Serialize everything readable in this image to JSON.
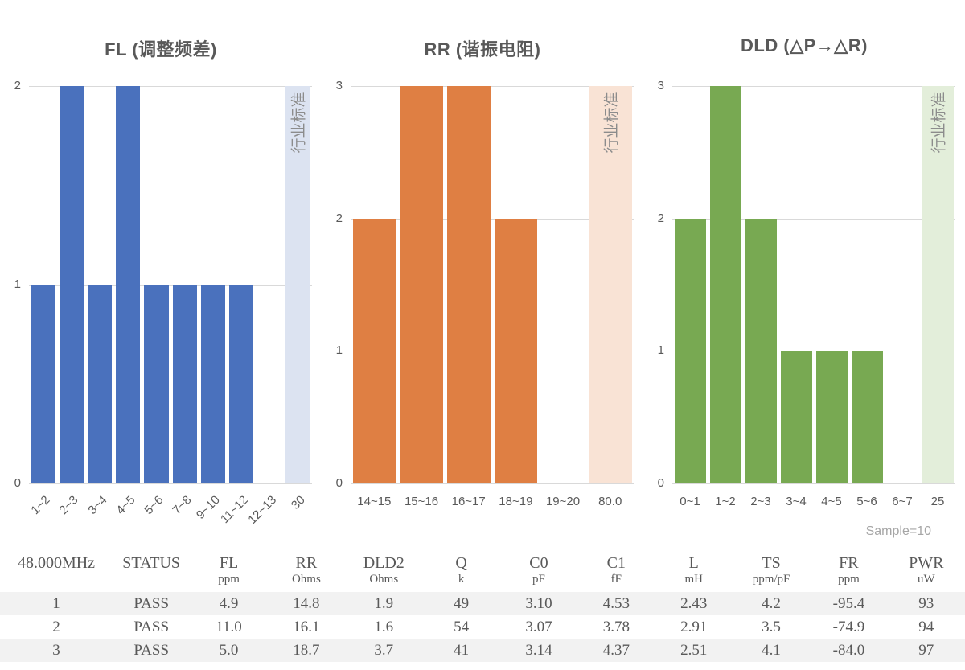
{
  "standard_band_label": "行业标准",
  "chart_data": [
    {
      "type": "bar",
      "title": "FL (调整频差)",
      "categories": [
        "1~2",
        "2~3",
        "3~4",
        "4~5",
        "5~6",
        "7~8",
        "9~10",
        "11~12",
        "12~13",
        "30"
      ],
      "values": [
        1,
        2,
        1,
        2,
        1,
        1,
        1,
        1,
        0,
        2
      ],
      "ylim": [
        0,
        2
      ],
      "yticks": [
        0,
        1,
        2
      ],
      "grid": true,
      "bar_color": "#4a71bd",
      "standard": {
        "index": 9,
        "label": "行业标准",
        "color": "#dce3f1"
      },
      "rotated_x_labels": true
    },
    {
      "type": "bar",
      "title": "RR (谐振电阻)",
      "categories": [
        "14~15",
        "15~16",
        "16~17",
        "18~19",
        "19~20",
        "80.0"
      ],
      "values": [
        2,
        3,
        3,
        2,
        0,
        3
      ],
      "ylim": [
        0,
        3
      ],
      "yticks": [
        0,
        1,
        2,
        3
      ],
      "grid": true,
      "bar_color": "#df7f43",
      "standard": {
        "index": 5,
        "label": "行业标准",
        "color": "#f9e3d5"
      },
      "rotated_x_labels": false
    },
    {
      "type": "bar",
      "title": "DLD (△P→△R)",
      "categories": [
        "0~1",
        "1~2",
        "2~3",
        "3~4",
        "4~5",
        "5~6",
        "6~7",
        "25"
      ],
      "values": [
        2,
        3,
        2,
        1,
        1,
        1,
        0,
        3
      ],
      "ylim": [
        0,
        3
      ],
      "yticks": [
        0,
        1,
        2,
        3
      ],
      "grid": true,
      "bar_color": "#78a952",
      "standard": {
        "index": 7,
        "label": "行业标准",
        "color": "#e3eeda"
      },
      "rotated_x_labels": false
    }
  ],
  "table": {
    "sample_note": "Sample=10",
    "columns": [
      {
        "label": "48.000MHz",
        "unit": ""
      },
      {
        "label": "STATUS",
        "unit": ""
      },
      {
        "label": "FL",
        "unit": "ppm"
      },
      {
        "label": "RR",
        "unit": "Ohms"
      },
      {
        "label": "DLD2",
        "unit": "Ohms"
      },
      {
        "label": "Q",
        "unit": "k"
      },
      {
        "label": "C0",
        "unit": "pF"
      },
      {
        "label": "C1",
        "unit": "fF"
      },
      {
        "label": "L",
        "unit": "mH"
      },
      {
        "label": "TS",
        "unit": "ppm/pF"
      },
      {
        "label": "FR",
        "unit": "ppm"
      },
      {
        "label": "PWR",
        "unit": "uW"
      }
    ],
    "rows": [
      [
        "1",
        "PASS",
        "4.9",
        "14.8",
        "1.9",
        "49",
        "3.10",
        "4.53",
        "2.43",
        "4.2",
        "-95.4",
        "93"
      ],
      [
        "2",
        "PASS",
        "11.0",
        "16.1",
        "1.6",
        "54",
        "3.07",
        "3.78",
        "2.91",
        "3.5",
        "-74.9",
        "94"
      ],
      [
        "3",
        "PASS",
        "5.0",
        "18.7",
        "3.7",
        "41",
        "3.14",
        "4.37",
        "2.51",
        "4.1",
        "-84.0",
        "97"
      ]
    ]
  },
  "colors": {
    "gridline": "#d9d9d9",
    "chart_text": "#595959",
    "standard_label_text": "#8c8c8c",
    "zebra_row": "#f2f2f2",
    "sample_note_text": "#a6a6a6"
  }
}
